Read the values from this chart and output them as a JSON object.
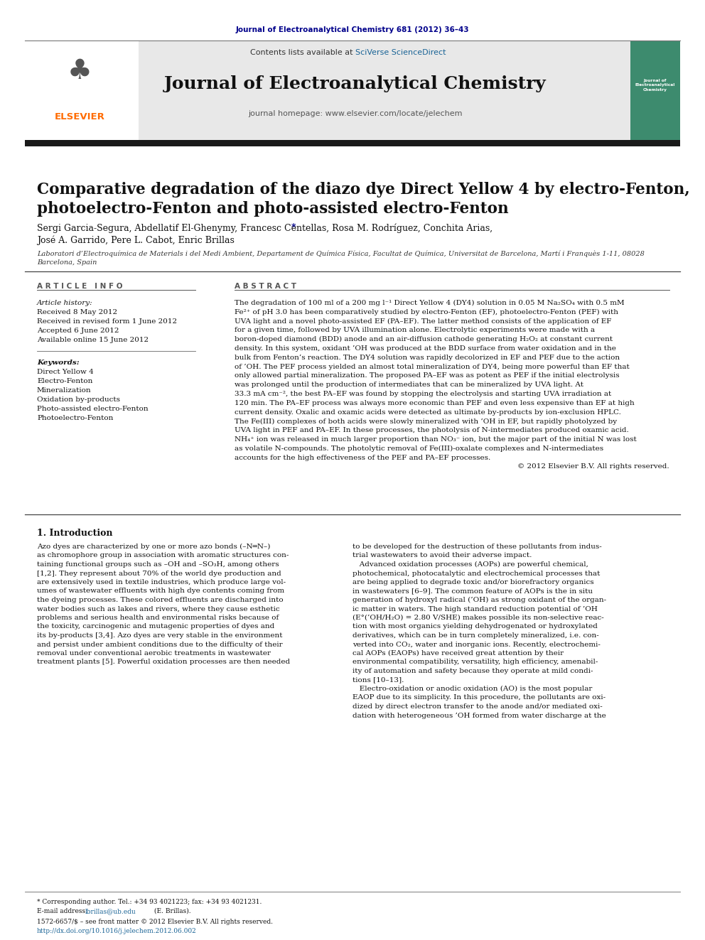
{
  "page_bg": "#ffffff",
  "top_citation": "Journal of Electroanalytical Chemistry 681 (2012) 36–43",
  "top_citation_color": "#00008B",
  "journal_name": "Journal of Electroanalytical Chemistry",
  "journal_url": "journal homepage: www.elsevier.com/locate/jelechem",
  "contents_text": "Contents lists available at ",
  "sciverse_text": "SciVerse ScienceDirect",
  "sciverse_color": "#1a6496",
  "header_bg": "#e8e8e8",
  "black_bar_color": "#1a1a1a",
  "paper_title": "Comparative degradation of the diazo dye Direct Yellow 4 by electro-Fenton,\nphotoelectro-Fenton and photo-assisted electro-Fenton",
  "authors": "Sergi Garcia-Segura, Abdellatif El-Ghenymy, Francesc Centellas, Rosa M. Rodríguez, Conchita Arias,\nJosé A. Garrido, Pere L. Cabot, Enric Brillas ",
  "authors_star": "*",
  "affiliation": "Laboratori d’Electroquímica de Materials i del Medi Ambient, Departament de Química Física, Facultat de Química, Universitat de Barcelona, Martí i Franquès 1-11, 08028\nBarcelona, Spain",
  "article_info_title": "A R T I C L E   I N F O",
  "abstract_title": "A B S T R A C T",
  "article_history_label": "Article history:",
  "dates": [
    "Received 8 May 2012",
    "Received in revised form 1 June 2012",
    "Accepted 6 June 2012",
    "Available online 15 June 2012"
  ],
  "keywords_label": "Keywords:",
  "keywords": [
    "Direct Yellow 4",
    "Electro-Fenton",
    "Mineralization",
    "Oxidation by-products",
    "Photo-assisted electro-Fenton",
    "Photoelectro-Fenton"
  ],
  "abstract_lines": [
    "The degradation of 100 ml of a 200 mg l⁻¹ Direct Yellow 4 (DY4) solution in 0.05 M Na₂SO₄ with 0.5 mM",
    "Fe²⁺ of pH 3.0 has been comparatively studied by electro-Fenton (EF), photoelectro-Fenton (PEF) with",
    "UVA light and a novel photo-assisted EF (PA–EF). The latter method consists of the application of EF",
    "for a given time, followed by UVA illumination alone. Electrolytic experiments were made with a",
    "boron-doped diamond (BDD) anode and an air-diffusion cathode generating H₂O₂ at constant current",
    "density. In this system, oxidant ’OH was produced at the BDD surface from water oxidation and in the",
    "bulk from Fenton’s reaction. The DY4 solution was rapidly decolorized in EF and PEF due to the action",
    "of ’OH. The PEF process yielded an almost total mineralization of DY4, being more powerful than EF that",
    "only allowed partial mineralization. The proposed PA–EF was as potent as PEF if the initial electrolysis",
    "was prolonged until the production of intermediates that can be mineralized by UVA light. At",
    "33.3 mA cm⁻², the best PA–EF was found by stopping the electrolysis and starting UVA irradiation at",
    "120 min. The PA–EF process was always more economic than PEF and even less expensive than EF at high",
    "current density. Oxalic and oxamic acids were detected as ultimate by-products by ion-exclusion HPLC.",
    "The Fe(III) complexes of both acids were slowly mineralized with ’OH in EF, but rapidly photolyzed by",
    "UVA light in PEF and PA–EF. In these processes, the photolysis of N-intermediates produced oxamic acid.",
    "NH₄⁺ ion was released in much larger proportion than NO₃⁻ ion, but the major part of the initial N was lost",
    "as volatile N-compounds. The photolytic removal of Fe(III)-oxalate complexes and N-intermediates",
    "accounts for the high effectiveness of the PEF and PA–EF processes.",
    "© 2012 Elsevier B.V. All rights reserved."
  ],
  "intro_title": "1. Introduction",
  "intro_col1_lines": [
    "Azo dyes are characterized by one or more azo bonds (–N═N–)",
    "as chromophore group in association with aromatic structures con-",
    "taining functional groups such as –OH and –SO₃H, among others",
    "[1,2]. They represent about 70% of the world dye production and",
    "are extensively used in textile industries, which produce large vol-",
    "umes of wastewater effluents with high dye contents coming from",
    "the dyeing processes. These colored effluents are discharged into",
    "water bodies such as lakes and rivers, where they cause esthetic",
    "problems and serious health and environmental risks because of",
    "the toxicity, carcinogenic and mutagenic properties of dyes and",
    "its by-products [3,4]. Azo dyes are very stable in the environment",
    "and persist under ambient conditions due to the difficulty of their",
    "removal under conventional aerobic treatments in wastewater",
    "treatment plants [5]. Powerful oxidation processes are then needed"
  ],
  "intro_col2_lines": [
    "to be developed for the destruction of these pollutants from indus-",
    "trial wastewaters to avoid their adverse impact.",
    "   Advanced oxidation processes (AOPs) are powerful chemical,",
    "photochemical, photocatalytic and electrochemical processes that",
    "are being applied to degrade toxic and/or biorefractory organics",
    "in wastewaters [6–9]. The common feature of AOPs is the in situ",
    "generation of hydroxyl radical (’OH) as strong oxidant of the organ-",
    "ic matter in waters. The high standard reduction potential of ’OH",
    "(E°(’OH/H₂O) = 2.80 V/SHE) makes possible its non-selective reac-",
    "tion with most organics yielding dehydrogenated or hydroxylated",
    "derivatives, which can be in turn completely mineralized, i.e. con-",
    "verted into CO₂, water and inorganic ions. Recently, electrochemi-",
    "cal AOPs (EAOPs) have received great attention by their",
    "environmental compatibility, versatility, high efficiency, amenabil-",
    "ity of automation and safety because they operate at mild condi-",
    "tions [10–13].",
    "   Electro-oxidation or anodic oxidation (AO) is the most popular",
    "EAOP due to its simplicity. In this procedure, the pollutants are oxi-",
    "dized by direct electron transfer to the anode and/or mediated oxi-",
    "dation with heterogeneous ’OH formed from water discharge at the"
  ],
  "footnote_star": "* Corresponding author. Tel.: +34 93 4021223; fax: +34 93 4021231.",
  "footnote_email_label": "E-mail address: ",
  "footnote_email": "lbrillas@ub.edu",
  "footnote_email_suffix": " (E. Brillas).",
  "issn_text": "1572-6657/$ – see front matter © 2012 Elsevier B.V. All rights reserved.",
  "doi_text": "http://dx.doi.org/10.1016/j.jelechem.2012.06.002",
  "doi_color": "#1a6496",
  "elsevier_color": "#FF6B00",
  "teal_cover_color": "#3d8b6e"
}
